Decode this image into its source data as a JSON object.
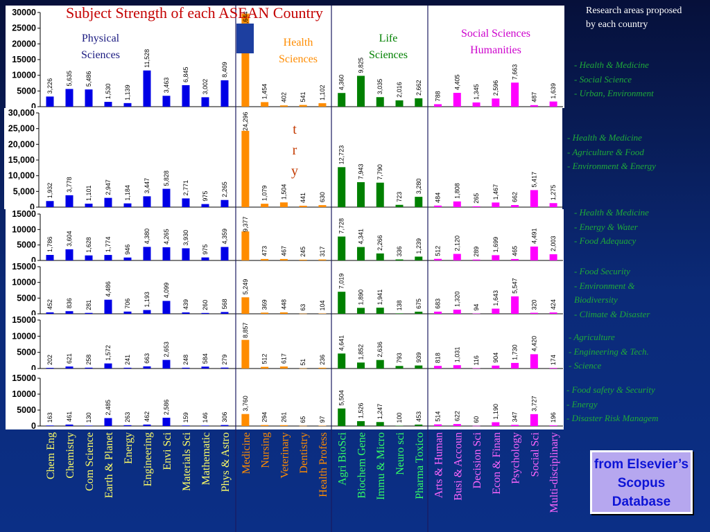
{
  "chart_data": {
    "type": "bar",
    "title": "Subject Strength of each ASEAN Country",
    "categories": [
      "Chem Eng",
      "Chemistry",
      "Com Science",
      "Earth & Planet",
      "Energy",
      "Engineering",
      "Envi Sci",
      "Materials Sci",
      "Mathematic",
      "Phys & Astro",
      "Medicine",
      "Nursing",
      "Veterinary",
      "Dentistry",
      "Health Profess",
      "Agri BioSci",
      "Biochem Gene",
      "Immu & Micro",
      "Neuro sci",
      "Pharma Toxico",
      "Arts & Human",
      "Busi & Accoun",
      "Decision Sci",
      "Econ & Finan",
      "Psychology",
      "Social Sci",
      "Multi-disciplinary"
    ],
    "category_colors": [
      "#0000e6",
      "#0000e6",
      "#0000e6",
      "#0000e6",
      "#0000e6",
      "#0000e6",
      "#0000e6",
      "#0000e6",
      "#0000e6",
      "#0000e6",
      "#ff8c00",
      "#ff8c00",
      "#ff8c00",
      "#ff8c00",
      "#ff8c00",
      "#008000",
      "#008000",
      "#008000",
      "#008000",
      "#008000",
      "#ff00ff",
      "#ff00ff",
      "#ff00ff",
      "#ff00ff",
      "#ff00ff",
      "#ff00ff",
      "#ff00ff"
    ],
    "category_label_colors": [
      "#ffff66",
      "#ffff66",
      "#ffff66",
      "#ffff66",
      "#ffff66",
      "#ffff66",
      "#ffff66",
      "#ffff66",
      "#ffff66",
      "#ffff66",
      "#ff8c00",
      "#ff8c00",
      "#ff8c00",
      "#ff8c00",
      "#ff8c00",
      "#33ff66",
      "#33ff66",
      "#33ff66",
      "#33ff66",
      "#33ff66",
      "#ff66ff",
      "#ff66ff",
      "#ff66ff",
      "#ff66ff",
      "#ff66ff",
      "#ff66ff",
      "#ff66ff"
    ],
    "groups": [
      {
        "label": [
          "Physical",
          "Sciences"
        ],
        "color": "#1a1a80"
      },
      {
        "label": [
          "Health",
          "Sciences"
        ],
        "color": "#ff8c00"
      },
      {
        "label": [
          "Life",
          "Sciences"
        ],
        "color": "#008000"
      },
      {
        "label": [
          "Social Sciences",
          "Humanities"
        ],
        "color": "#cc00cc"
      }
    ],
    "series": [
      {
        "values": [
          3226,
          5635,
          5486,
          1530,
          1139,
          11528,
          3463,
          6845,
          3002,
          8409,
          29644,
          1454,
          402,
          541,
          1102,
          4360,
          9825,
          3035,
          2016,
          2662,
          788,
          4405,
          1345,
          2596,
          7663,
          487,
          1639
        ],
        "ylim": [
          0,
          30000
        ],
        "yticks": [
          "0",
          "5000",
          "10000",
          "15000",
          "20000",
          "25000",
          "30000"
        ],
        "labels": [
          "3,226",
          "5,635",
          "5,486",
          "1,530",
          "1,139",
          "11,528",
          "3,463",
          "6,845",
          "3,002",
          "8,409",
          "29,644",
          "1,454",
          "402",
          "541",
          "1,102",
          "4,360",
          "9,825",
          "3,035",
          "2,016",
          "2,662",
          "788",
          "4,405",
          "1,345",
          "2,596",
          "7,663",
          "487",
          "1,639"
        ]
      },
      {
        "values": [
          1932,
          3778,
          1101,
          2947,
          1184,
          3447,
          5828,
          2771,
          975,
          2265,
          24296,
          1079,
          1504,
          441,
          630,
          12723,
          7943,
          7790,
          723,
          3280,
          484,
          1808,
          265,
          1467,
          662,
          5417,
          1275
        ],
        "ylim": [
          0,
          30000
        ],
        "yticks": [
          "0",
          "5,000",
          "10,000",
          "15,000",
          "20,000",
          "25,000",
          "30,000"
        ],
        "labels": [
          "1,932",
          "3,778",
          "1,101",
          "2,947",
          "1,184",
          "3,447",
          "5,828",
          "2,771",
          "975",
          "2,265",
          "24,296",
          "1,079",
          "1,504",
          "441",
          "630",
          "12,723",
          "7,943",
          "7,790",
          "723",
          "3,280",
          "484",
          "1,808",
          "265",
          "1,467",
          "662",
          "5,417",
          "1,275"
        ]
      },
      {
        "values": [
          1786,
          3604,
          1628,
          1774,
          946,
          4380,
          4265,
          3930,
          975,
          4359,
          9377,
          473,
          467,
          245,
          317,
          7728,
          4341,
          2266,
          336,
          1239,
          512,
          2120,
          289,
          1699,
          465,
          4491,
          2003
        ],
        "ylim": [
          0,
          15000
        ],
        "yticks": [
          "0",
          "5000",
          "10000",
          "15000"
        ],
        "labels": [
          "1,786",
          "3,604",
          "1,628",
          "1,774",
          "946",
          "4,380",
          "4,265",
          "3,930",
          "975",
          "4,359",
          "9,377",
          "473",
          "467",
          "245",
          "317",
          "7,728",
          "4,341",
          "2,266",
          "336",
          "1,239",
          "512",
          "2,120",
          "289",
          "1,699",
          "465",
          "4,491",
          "2,003"
        ]
      },
      {
        "values": [
          452,
          836,
          281,
          4486,
          706,
          1193,
          4099,
          439,
          260,
          568,
          5249,
          369,
          448,
          63,
          104,
          7019,
          1890,
          1941,
          138,
          675,
          683,
          1320,
          94,
          1643,
          5547,
          320,
          424
        ],
        "ylim": [
          0,
          15000
        ],
        "yticks": [
          "0",
          "5000",
          "10000",
          "15000"
        ],
        "labels": [
          "452",
          "836",
          "281",
          "4,486",
          "706",
          "1,193",
          "4,099",
          "439",
          "260",
          "568",
          "5,249",
          "369",
          "448",
          "63",
          "104",
          "7,019",
          "1,890",
          "1,941",
          "138",
          "675",
          "683",
          "1,320",
          "94",
          "1,643",
          "5,547",
          "320",
          "424"
        ]
      },
      {
        "values": [
          202,
          621,
          258,
          1572,
          241,
          663,
          2653,
          248,
          584,
          279,
          8857,
          512,
          617,
          51,
          236,
          4641,
          1852,
          2636,
          793,
          939,
          818,
          1031,
          116,
          904,
          1730,
          4420,
          174
        ],
        "ylim": [
          0,
          15000
        ],
        "yticks": [
          "0",
          "5000",
          "10000",
          "15000"
        ],
        "labels": [
          "202",
          "621",
          "258",
          "1,572",
          "241",
          "663",
          "2,653",
          "248",
          "584",
          "279",
          "8,857",
          "512",
          "617",
          "51",
          "236",
          "4,641",
          "1,852",
          "2,636",
          "793",
          "939",
          "818",
          "1,031",
          "116",
          "904",
          "1,730",
          "4,420",
          "174"
        ]
      },
      {
        "values": [
          163,
          461,
          130,
          2485,
          263,
          462,
          2586,
          159,
          146,
          306,
          3760,
          294,
          261,
          65,
          97,
          5504,
          1526,
          1247,
          100,
          453,
          514,
          622,
          60,
          1190,
          347,
          3727,
          196
        ],
        "ylim": [
          0,
          15000
        ],
        "yticks": [
          "0",
          "5000",
          "10000",
          "15000"
        ],
        "labels": [
          "163",
          "461",
          "130",
          "2,485",
          "263",
          "462",
          "2,586",
          "159",
          "146",
          "306",
          "3,760",
          "294",
          "261",
          "65",
          "97",
          "5,504",
          "1,526",
          "1,247",
          "100",
          "453",
          "514",
          "622",
          "60",
          "1,190",
          "347",
          "3,727",
          "196"
        ]
      }
    ]
  },
  "overlay_text": [
    "t",
    "r",
    "y"
  ],
  "sidebar": {
    "title": "Research areas proposed by each country",
    "groups": [
      [
        "- Health & Medicine",
        "- Social Science",
        "- Urban, Environment"
      ],
      [
        "- Health & Medicine",
        "- Agriculture & Food",
        "- Environment & Energy"
      ],
      [
        "- Health & Medicine",
        "- Energy & Water",
        "- Food Adequacy"
      ],
      [
        "- Food Security",
        "- Environment &",
        "  Biodiversity",
        "- Climate & Disaster"
      ],
      [
        "- Agriculture",
        "- Engineering & Tech.",
        "- Science"
      ],
      [
        "- Food safety & Security",
        "- Energy",
        "- Disaster Risk Managem"
      ]
    ],
    "text_color": "#1faa3a"
  },
  "source_box": {
    "text": "from Elsevier’s Scopus Database"
  }
}
